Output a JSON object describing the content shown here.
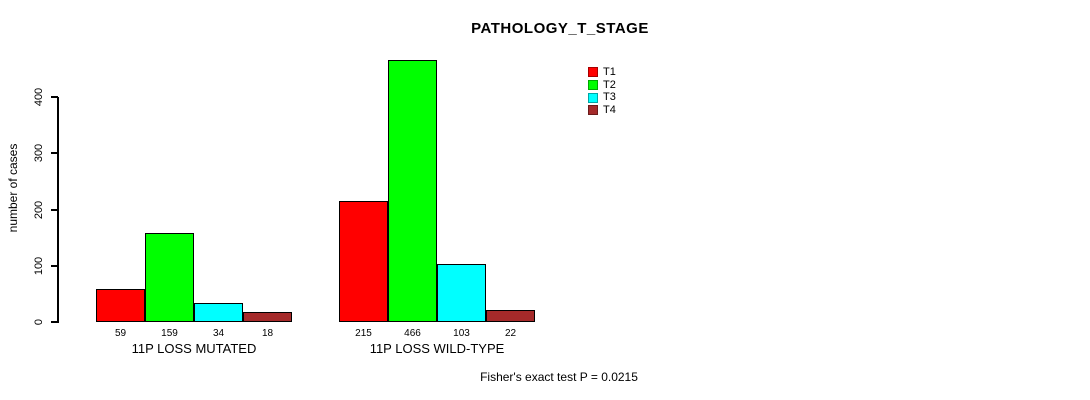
{
  "chart_data": {
    "type": "bar",
    "title": "PATHOLOGY_T_STAGE",
    "ylabel": "number of cases",
    "xlabel": "",
    "ylim": [
      0,
      400
    ],
    "yticks": [
      0,
      100,
      200,
      300,
      400
    ],
    "grid": false,
    "legend_position": "top-right",
    "categories": [
      "11P LOSS MUTATED",
      "11P LOSS WILD-TYPE"
    ],
    "series": [
      {
        "name": "T1",
        "color": "#FF0000",
        "values": [
          59,
          215
        ]
      },
      {
        "name": "T2",
        "color": "#00FF00",
        "values": [
          159,
          466
        ]
      },
      {
        "name": "T3",
        "color": "#00FFFF",
        "values": [
          34,
          103
        ]
      },
      {
        "name": "T4",
        "color": "#A52A2A",
        "values": [
          18,
          22
        ]
      }
    ],
    "bar_value_labels": [
      [
        "59",
        "159",
        "34",
        "18"
      ],
      [
        "215",
        "466",
        "103",
        "22"
      ]
    ],
    "annotation": "Fisher's exact test P = 0.0215"
  }
}
